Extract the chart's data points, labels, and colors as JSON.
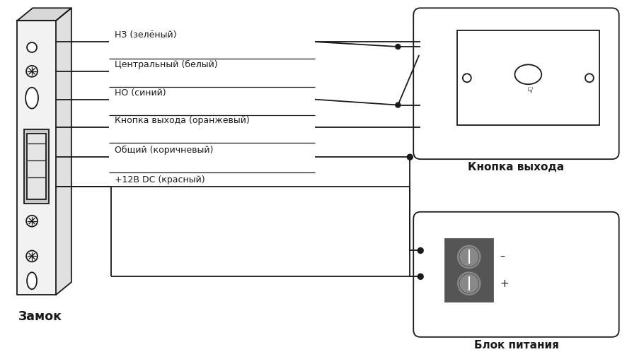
{
  "bg_color": "#ffffff",
  "line_color": "#1a1a1a",
  "wire_labels": [
    "НЗ (зелёный)",
    "Центральный (белый)",
    "НО (синий)",
    "Кнопка выхода (оранжевый)",
    "Общий (коричневый)",
    "+12В DC (красный)"
  ],
  "label_zamok": "Замок",
  "label_knopka": "Кнопка выхода",
  "label_blok": "Блок питания",
  "font_size_labels": 9.0,
  "font_size_titles": 11.0
}
